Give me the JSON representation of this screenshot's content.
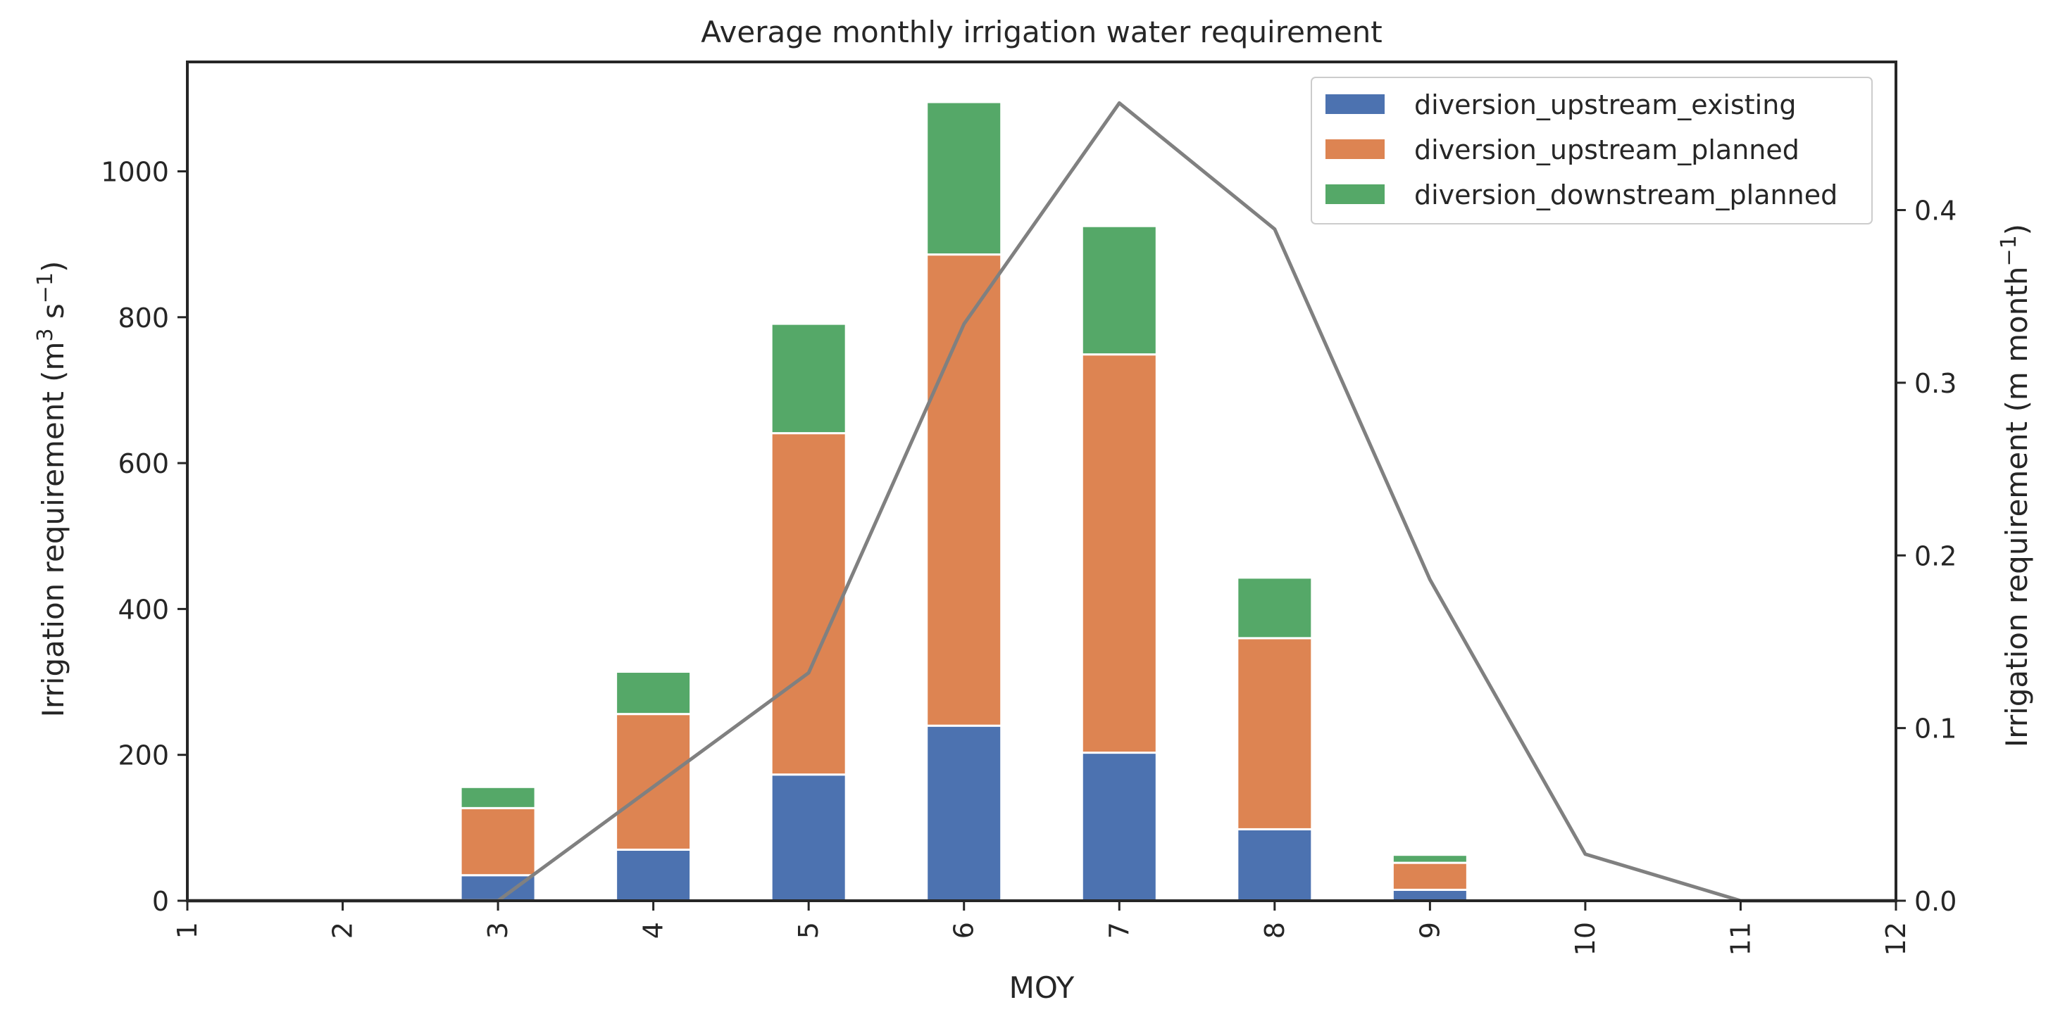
{
  "chart_data": {
    "type": "bar",
    "stacked": true,
    "title": "Average monthly irrigation water requirement",
    "xlabel": "MOY",
    "ylabel_left": {
      "base": "Irrigation requirement (m",
      "sup1": "3",
      "mid": " s",
      "sup2": "−1",
      "end": ")"
    },
    "ylabel_right": {
      "base": "Irrigation requirement (m month",
      "sup1": "−1",
      "end": ")"
    },
    "x_ticks": [
      "1",
      "2",
      "3",
      "4",
      "5",
      "6",
      "7",
      "8",
      "9",
      "10",
      "11",
      "12"
    ],
    "xlim": [
      1,
      12
    ],
    "ylim_left": [
      0,
      1150
    ],
    "yticks_left": [
      0,
      200,
      400,
      600,
      800,
      1000
    ],
    "ylim_right": [
      0,
      0.4858
    ],
    "yticks_right": [
      0.0,
      0.1,
      0.2,
      0.3,
      0.4
    ],
    "yticklabels_right": [
      "0.0",
      "0.1",
      "0.2",
      "0.3",
      "0.4"
    ],
    "bar_categories": [
      3,
      4,
      5,
      6,
      7,
      8,
      9
    ],
    "series": [
      {
        "name": "diversion_upstream_existing",
        "color": "#4c72b0",
        "values": [
          35,
          70,
          173,
          240,
          203,
          98,
          15
        ]
      },
      {
        "name": "diversion_upstream_planned",
        "color": "#dd8452",
        "values": [
          92,
          186,
          468,
          646,
          546,
          262,
          37
        ]
      },
      {
        "name": "diversion_downstream_planned",
        "color": "#55a868",
        "values": [
          29,
          58,
          150,
          209,
          176,
          83,
          11
        ]
      }
    ],
    "line": {
      "color": "#808080",
      "axis": "right",
      "x": [
        1,
        2,
        3,
        4,
        5,
        6,
        7,
        8,
        9,
        10,
        11,
        12
      ],
      "y": [
        0.0,
        0.0,
        0.0,
        0.066,
        0.132,
        0.334,
        0.462,
        0.389,
        0.186,
        0.027,
        0.0,
        0.0
      ]
    },
    "legend": "top-right",
    "grid": false
  }
}
